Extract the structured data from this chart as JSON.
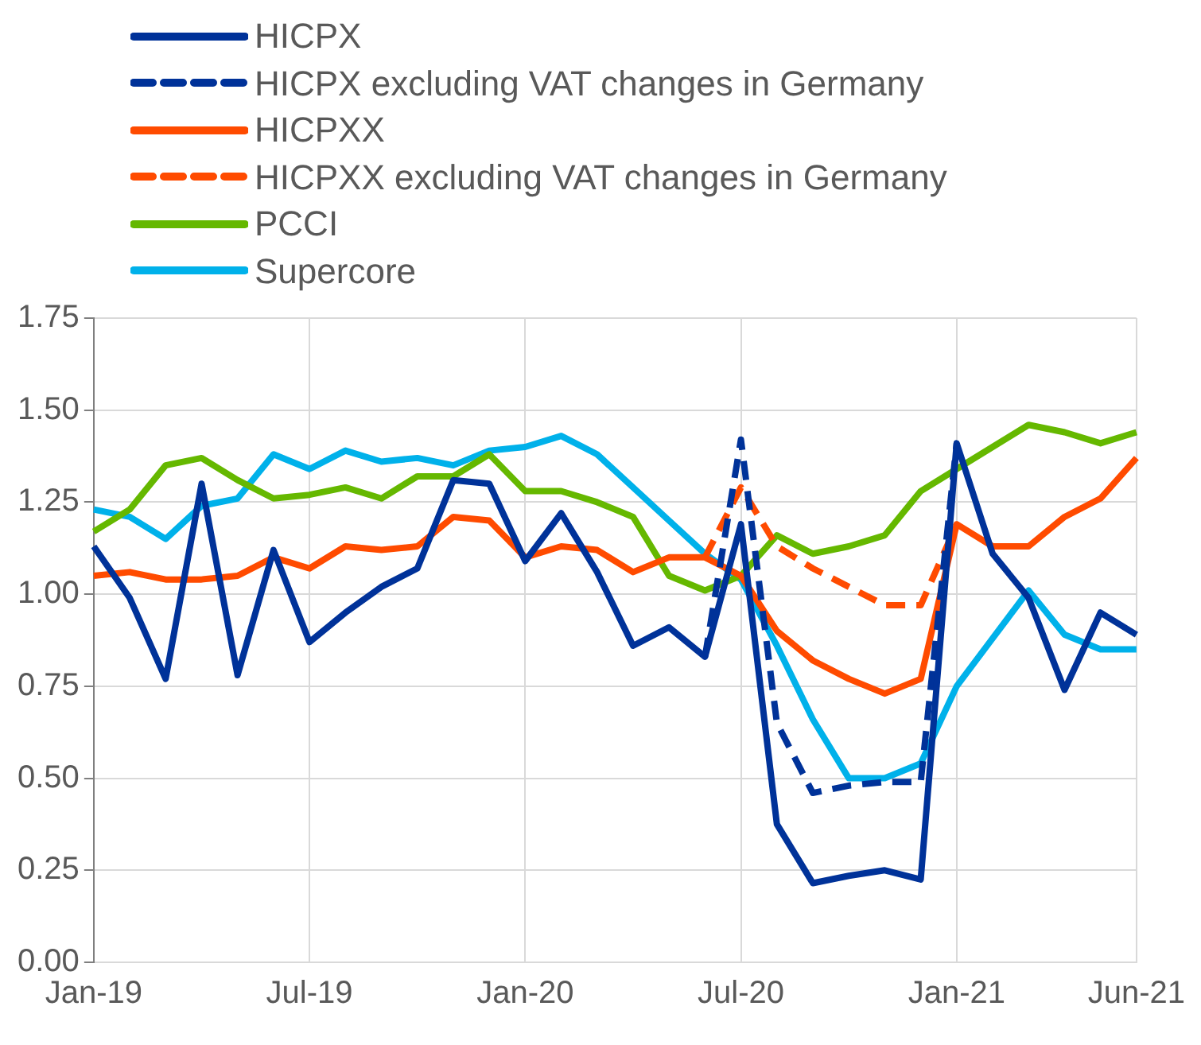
{
  "chart_data": {
    "type": "line",
    "categories": [
      "Jan-19",
      null,
      null,
      null,
      null,
      null,
      "Jul-19",
      null,
      null,
      null,
      null,
      null,
      "Jan-20",
      null,
      null,
      null,
      null,
      null,
      "Jul-20",
      null,
      null,
      null,
      null,
      null,
      "Jan-21",
      null,
      null,
      null,
      null,
      "Jun-21"
    ],
    "series": [
      {
        "name": "HICPX",
        "color": "#003299",
        "line_style": "solid",
        "values": [
          1.13,
          0.99,
          0.77,
          1.3,
          0.78,
          1.12,
          0.87,
          0.95,
          1.02,
          1.07,
          1.31,
          1.3,
          1.09,
          1.22,
          1.06,
          0.86,
          0.91,
          0.83,
          1.19,
          0.375,
          0.215,
          0.235,
          0.25,
          0.225,
          1.41,
          1.11,
          0.99,
          0.74,
          0.95,
          0.89
        ]
      },
      {
        "name": "HICPX excluding VAT changes in Germany",
        "color": "#003299",
        "line_style": "dashed",
        "values": [
          null,
          null,
          null,
          null,
          null,
          null,
          null,
          null,
          null,
          null,
          null,
          null,
          null,
          null,
          null,
          null,
          null,
          0.83,
          1.42,
          0.65,
          0.46,
          0.48,
          0.49,
          0.49,
          1.41,
          null,
          null,
          null,
          null,
          null
        ]
      },
      {
        "name": "HICPXX",
        "color": "#ff4b00",
        "line_style": "solid",
        "values": [
          1.05,
          1.06,
          1.04,
          1.04,
          1.05,
          1.1,
          1.07,
          1.13,
          1.12,
          1.13,
          1.21,
          1.2,
          1.1,
          1.13,
          1.12,
          1.06,
          1.1,
          1.1,
          1.05,
          0.9,
          0.82,
          0.77,
          0.73,
          0.77,
          1.19,
          1.13,
          1.13,
          1.21,
          1.26,
          1.37
        ]
      },
      {
        "name": "HICPXX excluding VAT changes in Germany",
        "color": "#ff4b00",
        "line_style": "dashed",
        "values": [
          null,
          null,
          null,
          null,
          null,
          null,
          null,
          null,
          null,
          null,
          null,
          null,
          null,
          null,
          null,
          null,
          null,
          1.1,
          1.29,
          1.13,
          1.07,
          1.02,
          0.97,
          0.97,
          1.19,
          null,
          null,
          null,
          null,
          null
        ]
      },
      {
        "name": "PCCI",
        "color": "#65b800",
        "line_style": "solid",
        "values": [
          1.17,
          1.23,
          1.35,
          1.37,
          1.31,
          1.26,
          1.27,
          1.29,
          1.26,
          1.32,
          1.32,
          1.38,
          1.28,
          1.28,
          1.25,
          1.21,
          1.05,
          1.01,
          1.05,
          1.16,
          1.11,
          1.13,
          1.16,
          1.28,
          1.34,
          1.4,
          1.46,
          1.44,
          1.41,
          1.44
        ]
      },
      {
        "name": "Supercore",
        "color": "#00b1ea",
        "line_style": "solid",
        "values": [
          1.23,
          1.21,
          1.15,
          1.24,
          1.26,
          1.38,
          1.34,
          1.39,
          1.36,
          1.37,
          1.35,
          1.39,
          1.4,
          1.43,
          1.38,
          1.29,
          1.2,
          1.11,
          1.04,
          0.86,
          0.66,
          0.5,
          0.5,
          0.54,
          0.75,
          0.88,
          1.01,
          0.89,
          0.85,
          0.85
        ]
      }
    ],
    "ylim": [
      0,
      1.75
    ],
    "yticks": [
      {
        "value": 0,
        "label": "0.00"
      },
      0.25,
      {
        "value": 0.5,
        "label": "0.50"
      },
      0.75,
      {
        "value": 1,
        "label": "1.00"
      },
      1.25,
      {
        "value": 1.5,
        "label": "1.50"
      },
      1.75
    ],
    "grid": true,
    "legend": "top left",
    "marker": "none"
  }
}
